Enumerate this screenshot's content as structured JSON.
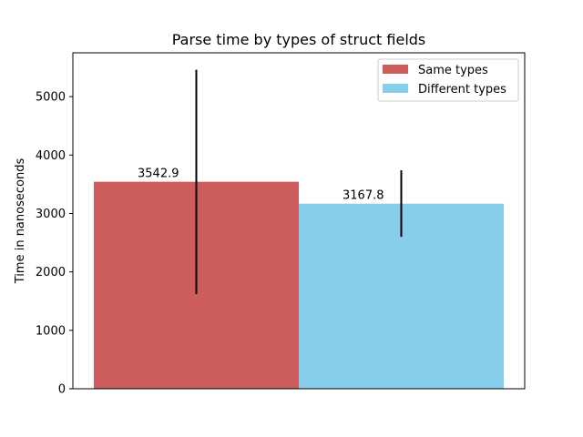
{
  "chart_data": {
    "type": "bar",
    "title": "Parse time by types of struct fields",
    "xlabel": "",
    "ylabel": "Time in nanoseconds",
    "ylim": [
      0,
      5750
    ],
    "yticks": [
      0,
      1000,
      2000,
      3000,
      4000,
      5000
    ],
    "grid": false,
    "legend_position": "top-right",
    "series": [
      {
        "name": "Same types",
        "value": 3542.9,
        "value_label": "3542.9",
        "error_low": 1620,
        "error_high": 5460,
        "color": "#cd5c5c"
      },
      {
        "name": "Different types",
        "value": 3167.8,
        "value_label": "3167.8",
        "error_low": 2600,
        "error_high": 3740,
        "color": "#87ceeb"
      }
    ]
  }
}
